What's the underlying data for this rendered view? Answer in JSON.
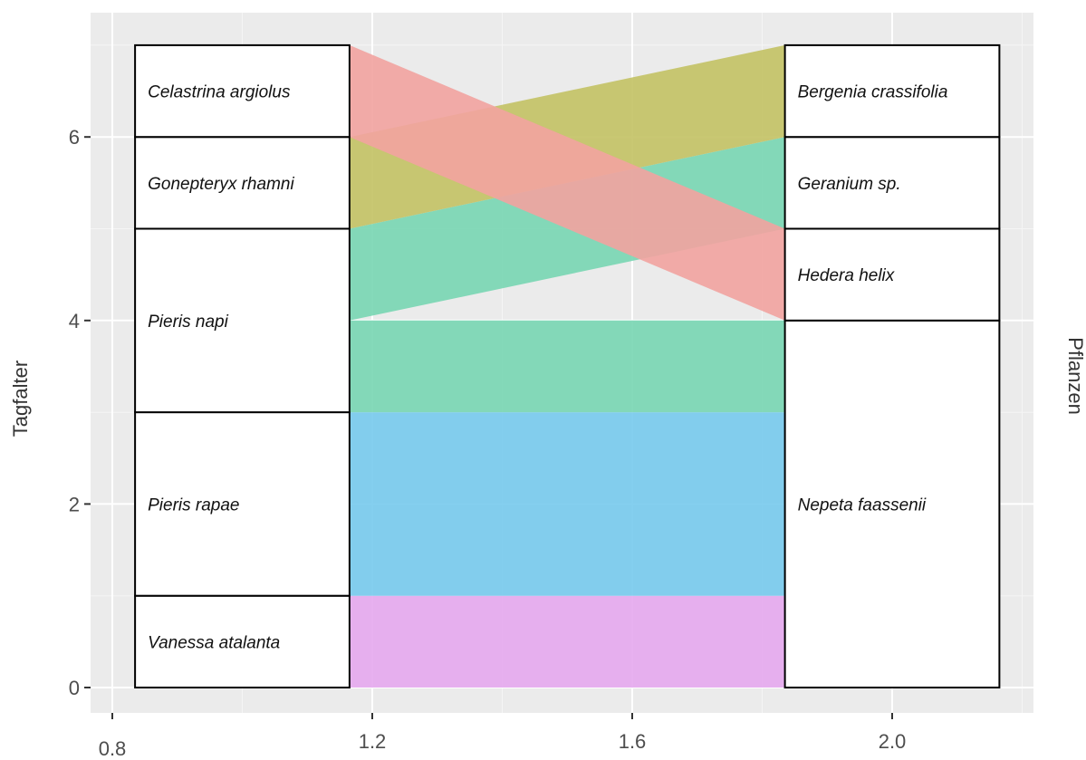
{
  "chart_data": {
    "type": "alluvial",
    "ylabel": "Tagfalter",
    "ylabel_right": "Pflanzen",
    "xlim": [
      0.8,
      2.2
    ],
    "ylim": [
      0,
      7
    ],
    "x_ticks": [
      {
        "value": 0.8,
        "label": "0.8"
      },
      {
        "value": 1.2,
        "label": "1.2"
      },
      {
        "value": 1.6,
        "label": "1.6"
      },
      {
        "value": 2.0,
        "label": "2.0"
      }
    ],
    "y_ticks": [
      {
        "value": 0,
        "label": "0"
      },
      {
        "value": 2,
        "label": "2"
      },
      {
        "value": 4,
        "label": "4"
      },
      {
        "value": 6,
        "label": "6"
      }
    ],
    "grid": true,
    "background": "#ebebeb",
    "axes": [
      {
        "x": 1,
        "strata": [
          {
            "label": "Vanessa atalanta",
            "y0": 0,
            "y1": 1
          },
          {
            "label": "Pieris rapae",
            "y0": 1,
            "y1": 3
          },
          {
            "label": "Pieris napi",
            "y0": 3,
            "y1": 5
          },
          {
            "label": "Gonepteryx rhamni",
            "y0": 5,
            "y1": 6
          },
          {
            "label": "Celastrina argiolus",
            "y0": 6,
            "y1": 7
          }
        ]
      },
      {
        "x": 2,
        "strata": [
          {
            "label": "Nepeta faassenii",
            "y0": 0,
            "y1": 4
          },
          {
            "label": "Hedera helix",
            "y0": 4,
            "y1": 5
          },
          {
            "label": "Geranium sp.",
            "y0": 5,
            "y1": 6
          },
          {
            "label": "Bergenia crassifolia",
            "y0": 6,
            "y1": 7
          }
        ]
      }
    ],
    "flows": [
      {
        "from": "Vanessa atalanta",
        "to": "Nepeta faassenii",
        "value": 1,
        "left": [
          0,
          1
        ],
        "right": [
          0,
          1
        ],
        "color": "#e6a8ee"
      },
      {
        "from": "Pieris rapae",
        "to": "Nepeta faassenii",
        "value": 2,
        "left": [
          1,
          3
        ],
        "right": [
          1,
          3
        ],
        "color": "#77caed"
      },
      {
        "from": "Pieris napi",
        "to": "Nepeta faassenii",
        "value": 1,
        "left": [
          3,
          4
        ],
        "right": [
          3,
          4
        ],
        "color": "#78d6b3"
      },
      {
        "from": "Pieris napi",
        "to": "Geranium sp.",
        "value": 1,
        "left": [
          4,
          5
        ],
        "right": [
          5,
          6
        ],
        "color": "#78d6b3"
      },
      {
        "from": "Gonepteryx rhamni",
        "to": "Bergenia crassifolia",
        "value": 1,
        "left": [
          5,
          6
        ],
        "right": [
          6,
          7
        ],
        "color": "#c3c264"
      },
      {
        "from": "Celastrina argiolus",
        "to": "Hedera helix",
        "value": 1,
        "left": [
          6,
          7
        ],
        "right": [
          4,
          5
        ],
        "color": "#f2a3a0"
      }
    ]
  }
}
